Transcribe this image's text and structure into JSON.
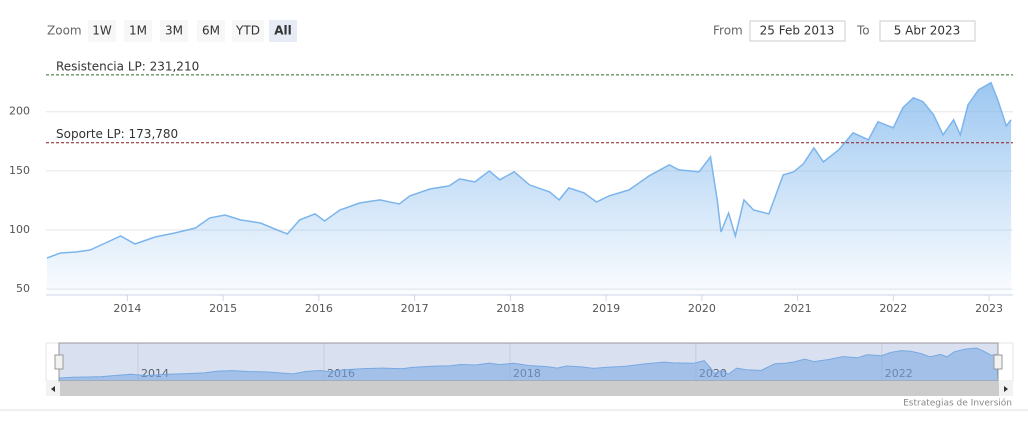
{
  "range_selector": {
    "label": "Zoom",
    "buttons": [
      "1W",
      "1M",
      "3M",
      "6M",
      "YTD",
      "All"
    ],
    "selected_button": 5
  },
  "input": {
    "from_label": "From",
    "from": "25 Feb 2013",
    "to_label": "To",
    "to": "5 Abr 2023"
  },
  "chart_data": {
    "type": "area",
    "x": [
      2013.16,
      2013.3,
      2013.46,
      2013.61,
      2013.77,
      2013.93,
      2014.08,
      2014.29,
      2014.5,
      2014.71,
      2014.86,
      2015.02,
      2015.18,
      2015.39,
      2015.54,
      2015.67,
      2015.8,
      2015.96,
      2016.06,
      2016.22,
      2016.43,
      2016.64,
      2016.84,
      2016.95,
      2017.16,
      2017.36,
      2017.47,
      2017.63,
      2017.78,
      2017.89,
      2018.04,
      2018.2,
      2018.41,
      2018.51,
      2018.61,
      2018.77,
      2018.9,
      2019.03,
      2019.24,
      2019.45,
      2019.66,
      2019.76,
      2019.97,
      2020.09,
      2020.16,
      2020.2,
      2020.28,
      2020.35,
      2020.44,
      2020.54,
      2020.7,
      2020.85,
      2020.96,
      2021.06,
      2021.17,
      2021.27,
      2021.43,
      2021.58,
      2021.74,
      2021.84,
      2022.0,
      2022.1,
      2022.21,
      2022.31,
      2022.42,
      2022.52,
      2022.63,
      2022.7,
      2022.78,
      2022.89,
      2023.02,
      2023.09,
      2023.18,
      2023.23
    ],
    "series": [
      {
        "color": "#7cb5ec",
        "values": [
          76.3,
          80.5,
          81.4,
          83.1,
          89.0,
          94.9,
          88.1,
          94.1,
          97.5,
          101.7,
          110.2,
          112.7,
          108.5,
          105.9,
          100.8,
          96.6,
          108.5,
          113.6,
          107.6,
          116.9,
          122.9,
          125.4,
          122.0,
          128.8,
          134.7,
          137.3,
          143.2,
          140.7,
          150.0,
          142.4,
          149.2,
          138.1,
          132.2,
          125.4,
          135.6,
          131.4,
          123.7,
          128.8,
          133.9,
          145.8,
          155.1,
          150.8,
          149.2,
          161.9,
          125.4,
          98.3,
          114.4,
          94.9,
          125.4,
          116.9,
          113.6,
          146.6,
          149.2,
          155.9,
          169.5,
          157.6,
          167.8,
          182.2,
          176.3,
          191.5,
          186.4,
          203.4,
          211.9,
          208.5,
          197.5,
          180.5,
          193.2,
          180.5,
          205.9,
          218.6,
          224.6,
          210.2,
          188.1,
          193.2
        ]
      }
    ],
    "xlim": [
      2013.15,
      2023.25
    ],
    "xticks": [
      2014,
      2015,
      2016,
      2017,
      2018,
      2019,
      2020,
      2021,
      2022,
      2023
    ],
    "ylim": [
      45,
      248
    ],
    "yticks": [
      50,
      100,
      150,
      200
    ],
    "grid": true,
    "plot_lines": [
      {
        "label": "Resistencia LP: 231,210",
        "value": 231.21,
        "color": "#2e6b2e"
      },
      {
        "label": "Soporte LP: 173,780",
        "value": 173.78,
        "color": "#8b1a1a"
      }
    ],
    "navigator": {
      "xticks": [
        2014,
        2016,
        2018,
        2020,
        2022
      ]
    }
  },
  "credits": "Estrategias de Inversión"
}
